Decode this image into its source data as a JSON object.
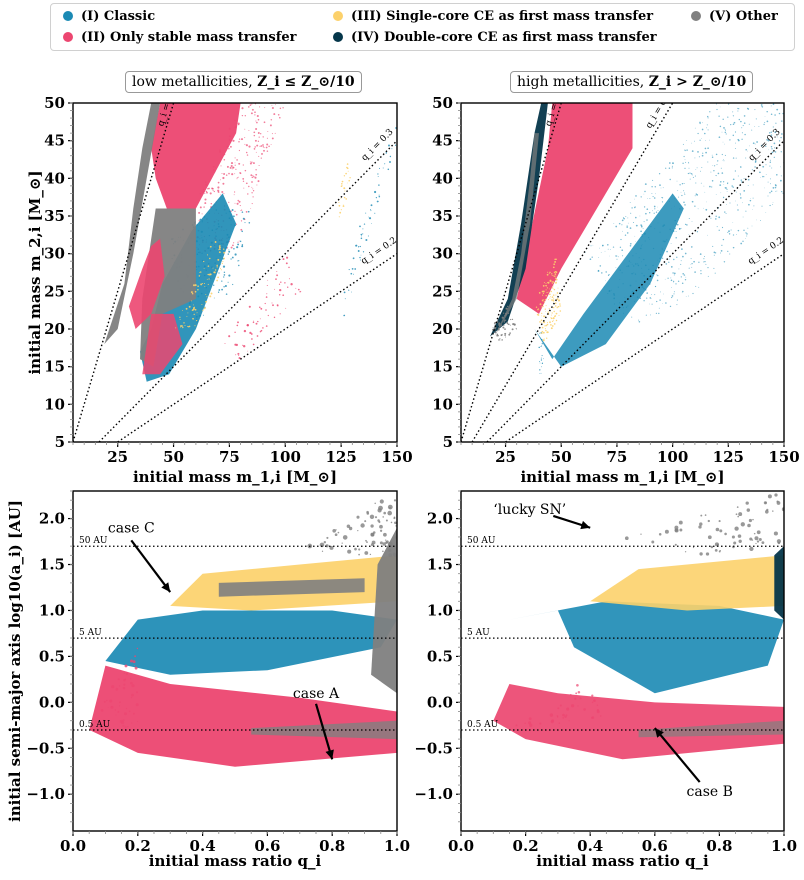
{
  "legend": [
    {
      "label": "(I) Classic",
      "color": "#1b8ab4"
    },
    {
      "label": "(II) Only stable mass transfer",
      "color": "#ec4670"
    },
    {
      "label": "(III) Single-core CE as first mass transfer",
      "color": "#fcd16b"
    },
    {
      "label": "(IV) Double-core CE as first mass transfer",
      "color": "#05364a"
    },
    {
      "label": "(V) Other",
      "color": "#808080"
    }
  ],
  "panel_titles": {
    "low": {
      "text": "low metallicities, ",
      "math": "Z_i ≤ Z_⊙/10"
    },
    "high": {
      "text": "high metallicities, ",
      "math": "Z_i > Z_⊙/10"
    }
  },
  "chart_data": [
    {
      "type": "scatter",
      "panel": "top-left",
      "xlabel": "initial mass m_1,i [M_⊙]",
      "ylabel": "initial mass m_2,i [M_⊙]",
      "xlim": [
        5,
        150
      ],
      "ylim": [
        5,
        50
      ],
      "xticks": [
        25,
        50,
        75,
        100,
        125,
        150
      ],
      "yticks": [
        5,
        10,
        15,
        20,
        25,
        30,
        35,
        40,
        45,
        50
      ],
      "reference_lines": [
        {
          "label": "q_i = 1",
          "slope": 1
        },
        {
          "label": "q_i = 0.3",
          "slope": 0.3
        },
        {
          "label": "q_i = 0.2",
          "slope": 0.2
        }
      ]
    },
    {
      "type": "scatter",
      "panel": "top-right",
      "xlabel": "initial mass m_1,i [M_⊙]",
      "ylabel": "",
      "xlim": [
        5,
        150
      ],
      "ylim": [
        5,
        50
      ],
      "xticks": [
        25,
        50,
        75,
        100,
        125,
        150
      ],
      "yticks": [
        5,
        10,
        15,
        20,
        25,
        30,
        35,
        40,
        45,
        50
      ],
      "reference_lines": [
        {
          "label": "q_i = 1",
          "slope": 1
        },
        {
          "label": "q_i = 0.5",
          "slope": 0.5
        },
        {
          "label": "q_i = 0.3",
          "slope": 0.3
        },
        {
          "label": "q_i = 0.2",
          "slope": 0.2
        }
      ]
    },
    {
      "type": "scatter",
      "panel": "bottom-left",
      "xlabel": "initial mass ratio q_i",
      "ylabel": "initial semi-major axis log10(a_i) [AU]",
      "xlim": [
        0,
        1
      ],
      "ylim": [
        -1.4,
        2.3
      ],
      "xticks": [
        0.0,
        0.2,
        0.4,
        0.6,
        0.8,
        1.0
      ],
      "yticks": [
        -1.0,
        -0.5,
        0.0,
        0.5,
        1.0,
        1.5,
        2.0
      ],
      "hlines": [
        {
          "label": "50 AU",
          "y": 1.699
        },
        {
          "label": "5 AU",
          "y": 0.699
        },
        {
          "label": "0.5 AU",
          "y": -0.301
        }
      ],
      "annotations": [
        {
          "text": "case C",
          "target": [
            0.3,
            1.2
          ]
        },
        {
          "text": "case A",
          "target": [
            0.8,
            -0.62
          ]
        }
      ]
    },
    {
      "type": "scatter",
      "panel": "bottom-right",
      "xlabel": "initial mass ratio q_i",
      "ylabel": "",
      "xlim": [
        0,
        1
      ],
      "ylim": [
        -1.4,
        2.3
      ],
      "xticks": [
        0.0,
        0.2,
        0.4,
        0.6,
        0.8,
        1.0
      ],
      "yticks": [
        -1.0,
        -0.5,
        0.0,
        0.5,
        1.0,
        1.5,
        2.0
      ],
      "hlines": [
        {
          "label": "50 AU",
          "y": 1.699
        },
        {
          "label": "5 AU",
          "y": 0.699
        },
        {
          "label": "0.5 AU",
          "y": -0.301
        }
      ],
      "annotations": [
        {
          "text": "‘lucky SN’",
          "target": [
            0.4,
            1.9
          ]
        },
        {
          "text": "case B",
          "target": [
            0.6,
            -0.28
          ]
        }
      ]
    }
  ]
}
